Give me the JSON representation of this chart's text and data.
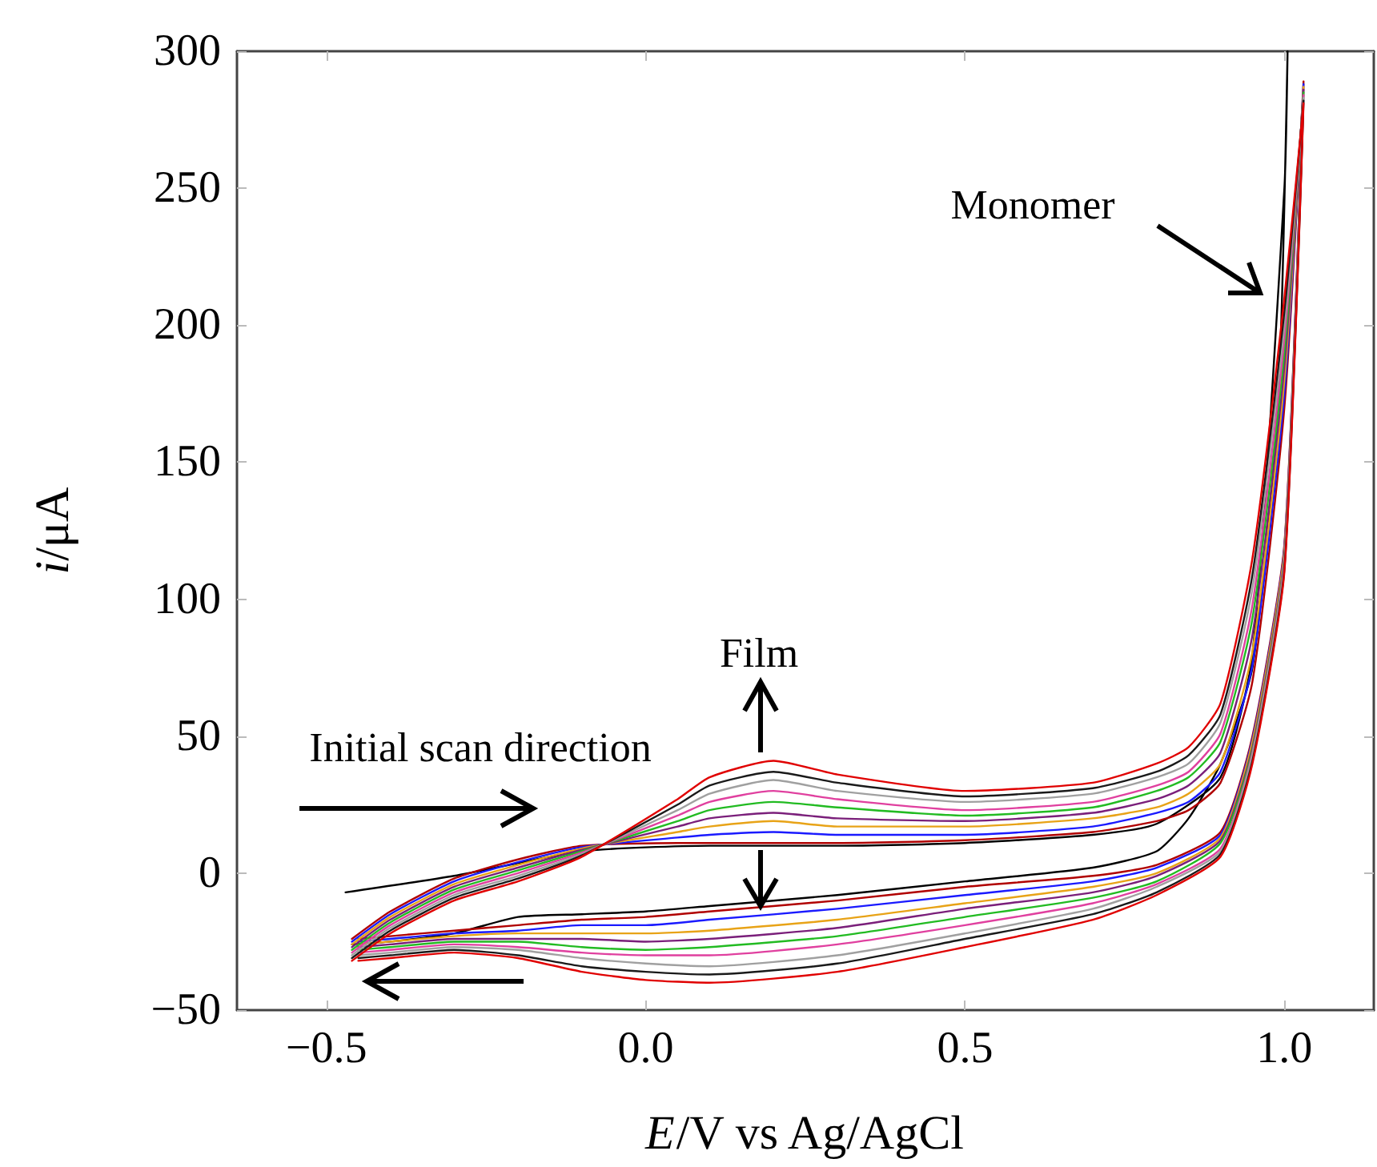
{
  "chart_data": {
    "type": "line",
    "xlabel": "E/V vs Ag/AgCl",
    "ylabel": "i/μA",
    "xlim": [
      -0.64,
      1.14
    ],
    "xticks": [
      {
        "value": -0.5,
        "label": "−0.5"
      },
      {
        "value": 0,
        "label": "0.0"
      },
      0.5,
      {
        "value": 1,
        "label": "1.0"
      }
    ],
    "ylim": [
      -50,
      300
    ],
    "yticks": [
      {
        "value": -50,
        "label": "−50"
      },
      0,
      50,
      100,
      150,
      200,
      250,
      300
    ],
    "grid": false,
    "marker": "none",
    "line_style": "solid",
    "annotations": [
      "Monomer",
      "Film",
      "Initial scan direction"
    ],
    "series": [
      {
        "color": "#000000",
        "x": [
          -0.47,
          -0.3,
          -0.1,
          0.1,
          0.3,
          0.5,
          0.7,
          0.8,
          0.9,
          0.95,
          1.0,
          1.005,
          0.99,
          0.95,
          0.9,
          0.85,
          0.8,
          0.7,
          0.5,
          0.3,
          0.1,
          0.0,
          -0.1,
          -0.2,
          -0.3,
          -0.4,
          -0.46
        ],
        "values": [
          -7,
          -1,
          8,
          10,
          10,
          11,
          14,
          18,
          35,
          80,
          250,
          300,
          170,
          75,
          40,
          20,
          8,
          2,
          -3,
          -8,
          -12,
          -14,
          -15,
          -16,
          -22,
          -25,
          -26
        ]
      },
      {
        "color": "#b00000",
        "x": [
          -0.46,
          -0.4,
          -0.3,
          -0.2,
          -0.1,
          0.05,
          0.1,
          0.2,
          0.3,
          0.5,
          0.7,
          0.8,
          0.85,
          0.9,
          0.95,
          1.0,
          1.03,
          1.0,
          0.95,
          0.9,
          0.8,
          0.7,
          0.5,
          0.3,
          0.1,
          0.0,
          -0.1,
          -0.2,
          -0.3,
          -0.4,
          -0.45
        ],
        "values": [
          -24,
          -14,
          -2,
          5,
          10,
          11,
          11,
          11,
          11,
          12,
          15,
          19,
          23,
          33,
          70,
          170,
          289,
          120,
          50,
          15,
          3,
          -1,
          -5,
          -10,
          -14,
          -16,
          -17,
          -19,
          -21,
          -23,
          -24
        ]
      },
      {
        "color": "#1a1aff",
        "x": [
          -0.46,
          -0.4,
          -0.3,
          -0.2,
          -0.1,
          0.05,
          0.1,
          0.2,
          0.3,
          0.5,
          0.7,
          0.8,
          0.85,
          0.9,
          0.95,
          1.0,
          1.03,
          1.0,
          0.95,
          0.9,
          0.8,
          0.7,
          0.5,
          0.3,
          0.1,
          0.0,
          -0.1,
          -0.2,
          -0.3,
          -0.4,
          -0.45
        ],
        "values": [
          -25,
          -15,
          -3,
          4,
          9.5,
          13,
          14,
          15,
          14,
          14,
          17,
          22,
          26,
          37,
          76,
          175,
          288,
          119,
          49,
          14,
          2,
          -3,
          -8,
          -13,
          -17,
          -19,
          -19,
          -21,
          -22,
          -24,
          -25
        ]
      },
      {
        "color": "#e8a317",
        "x": [
          -0.46,
          -0.4,
          -0.3,
          -0.2,
          -0.1,
          0.05,
          0.1,
          0.2,
          0.3,
          0.5,
          0.7,
          0.8,
          0.85,
          0.9,
          0.95,
          1.0,
          1.03,
          1.0,
          0.95,
          0.9,
          0.8,
          0.7,
          0.5,
          0.3,
          0.1,
          0.0,
          -0.1,
          -0.2,
          -0.3,
          -0.4,
          -0.45
        ],
        "values": [
          -26,
          -16,
          -4,
          3,
          9,
          15,
          17,
          19,
          17,
          17,
          20,
          24,
          29,
          40,
          81,
          180,
          287,
          118,
          48,
          13,
          0,
          -5,
          -11,
          -17,
          -21,
          -22,
          -22,
          -22,
          -23,
          -25,
          -26
        ]
      },
      {
        "color": "#7a1f7a",
        "x": [
          -0.46,
          -0.4,
          -0.3,
          -0.2,
          -0.1,
          0.05,
          0.1,
          0.2,
          0.3,
          0.5,
          0.7,
          0.8,
          0.85,
          0.9,
          0.95,
          1.0,
          1.03,
          1.0,
          0.95,
          0.9,
          0.8,
          0.7,
          0.5,
          0.3,
          0.1,
          0.0,
          -0.1,
          -0.2,
          -0.3,
          -0.4,
          -0.45
        ],
        "values": [
          -27,
          -17,
          -5,
          2,
          8.5,
          17,
          20,
          22,
          20,
          19,
          22,
          27,
          32,
          44,
          87,
          185,
          286,
          116,
          46,
          12,
          -1,
          -7,
          -13,
          -20,
          -24,
          -25,
          -24,
          -24,
          -24,
          -26,
          -27
        ]
      },
      {
        "color": "#22bb22",
        "x": [
          -0.46,
          -0.4,
          -0.3,
          -0.2,
          -0.1,
          0.05,
          0.1,
          0.2,
          0.3,
          0.5,
          0.7,
          0.8,
          0.85,
          0.9,
          0.95,
          1.0,
          1.03,
          1.0,
          0.95,
          0.9,
          0.8,
          0.7,
          0.5,
          0.3,
          0.1,
          0.0,
          -0.1,
          -0.2,
          -0.3,
          -0.4,
          -0.45
        ],
        "values": [
          -28,
          -18,
          -6,
          1,
          8,
          19,
          23,
          26,
          24,
          21,
          24,
          30,
          35,
          48,
          93,
          190,
          285,
          115,
          45,
          11,
          -3,
          -9,
          -16,
          -23,
          -27,
          -28,
          -27,
          -25,
          -25,
          -27,
          -28
        ]
      },
      {
        "color": "#e0409f",
        "x": [
          -0.46,
          -0.4,
          -0.3,
          -0.2,
          -0.1,
          0.05,
          0.1,
          0.2,
          0.3,
          0.5,
          0.7,
          0.8,
          0.85,
          0.9,
          0.95,
          1.0,
          1.03,
          1.0,
          0.95,
          0.9,
          0.8,
          0.7,
          0.5,
          0.3,
          0.1,
          0.0,
          -0.1,
          -0.2,
          -0.3,
          -0.4,
          -0.45
        ],
        "values": [
          -29,
          -19,
          -7,
          0,
          7.5,
          21,
          26,
          30,
          27,
          23,
          26,
          32,
          37,
          51,
          98,
          195,
          284,
          114,
          44,
          9,
          -4,
          -11,
          -19,
          -26,
          -30,
          -30,
          -29,
          -27,
          -26,
          -28,
          -29
        ]
      },
      {
        "color": "#a0a0a0",
        "x": [
          -0.46,
          -0.4,
          -0.3,
          -0.2,
          -0.1,
          0.05,
          0.1,
          0.2,
          0.3,
          0.5,
          0.7,
          0.8,
          0.85,
          0.9,
          0.95,
          1.0,
          1.03,
          1.0,
          0.95,
          0.9,
          0.8,
          0.7,
          0.5,
          0.3,
          0.1,
          0.0,
          -0.1,
          -0.2,
          -0.3,
          -0.4,
          -0.45
        ],
        "values": [
          -30,
          -20,
          -8,
          -1,
          7,
          23,
          29,
          34,
          30,
          26,
          29,
          35,
          40,
          55,
          104,
          200,
          283,
          113,
          43,
          8,
          -5,
          -13,
          -22,
          -30,
          -34,
          -33,
          -31,
          -28,
          -27,
          -29,
          -30
        ]
      },
      {
        "color": "#1a1a1a",
        "x": [
          -0.46,
          -0.4,
          -0.3,
          -0.2,
          -0.1,
          0.05,
          0.1,
          0.2,
          0.3,
          0.5,
          0.7,
          0.8,
          0.85,
          0.9,
          0.95,
          1.0,
          1.03,
          1.0,
          0.95,
          0.9,
          0.8,
          0.7,
          0.5,
          0.3,
          0.1,
          0.0,
          -0.1,
          -0.2,
          -0.3,
          -0.4,
          -0.45
        ],
        "values": [
          -31,
          -21,
          -9,
          -2,
          6.5,
          25,
          32,
          37,
          33,
          28,
          31,
          37,
          43,
          58,
          109,
          205,
          282,
          111,
          41,
          7,
          -7,
          -15,
          -24,
          -33,
          -37,
          -36,
          -34,
          -30,
          -28,
          -30,
          -31
        ]
      },
      {
        "color": "#e00000",
        "x": [
          -0.46,
          -0.4,
          -0.3,
          -0.2,
          -0.1,
          0.05,
          0.1,
          0.2,
          0.3,
          0.5,
          0.7,
          0.8,
          0.85,
          0.9,
          0.95,
          1.0,
          1.03,
          1.0,
          0.95,
          0.9,
          0.8,
          0.7,
          0.5,
          0.3,
          0.1,
          0.0,
          -0.1,
          -0.2,
          -0.3,
          -0.4,
          -0.45
        ],
        "values": [
          -32,
          -22,
          -10,
          -3,
          6,
          27,
          35,
          41,
          36,
          30,
          33,
          40,
          46,
          62,
          115,
          210,
          281,
          110,
          40,
          6,
          -8,
          -17,
          -27,
          -36,
          -40,
          -39,
          -36,
          -31,
          -29,
          -31,
          -32
        ]
      }
    ]
  }
}
